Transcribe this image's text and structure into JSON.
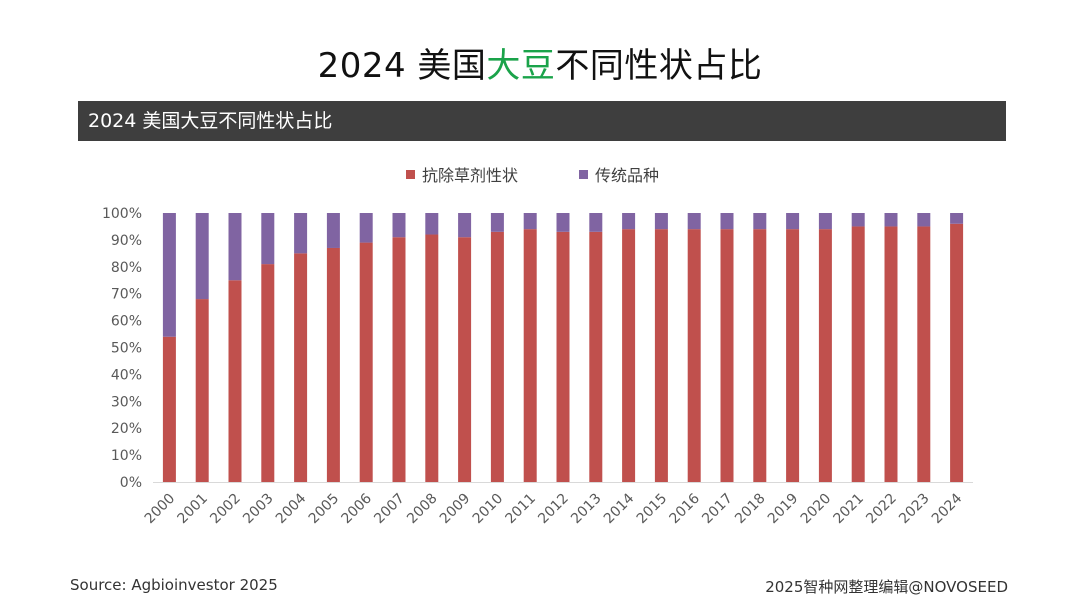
{
  "header": {
    "title_prefix": "2024 美国",
    "title_highlight": "大豆",
    "title_suffix": "不同性状占比",
    "banner": "2024 美国大豆不同性状占比"
  },
  "footer": {
    "source": "Source: Agbioinvestor 2025",
    "credit": "2025智种网整理编辑@NOVOSEED"
  },
  "colors": {
    "herbicide": "#c0504d",
    "conventional": "#8064a2",
    "title_highlight": "#1aa34a",
    "banner_bg": "#3e3e3e"
  },
  "chart_data": {
    "type": "bar",
    "stacked": true,
    "title": "2024 美国大豆不同性状占比",
    "categories": [
      "2000",
      "2001",
      "2002",
      "2003",
      "2004",
      "2005",
      "2006",
      "2007",
      "2008",
      "2009",
      "2010",
      "2011",
      "2012",
      "2013",
      "2014",
      "2015",
      "2016",
      "2017",
      "2018",
      "2019",
      "2020",
      "2021",
      "2022",
      "2023",
      "2024"
    ],
    "series": [
      {
        "name": "抗除草剂性状",
        "color": "#c0504d",
        "values": [
          54,
          68,
          75,
          81,
          85,
          87,
          89,
          91,
          92,
          91,
          93,
          94,
          93,
          93,
          94,
          94,
          94,
          94,
          94,
          94,
          94,
          95,
          95,
          95,
          96
        ]
      },
      {
        "name": "传统品种",
        "color": "#8064a2",
        "values": [
          46,
          32,
          25,
          19,
          15,
          13,
          11,
          9,
          8,
          9,
          7,
          6,
          7,
          7,
          6,
          6,
          6,
          6,
          6,
          6,
          6,
          5,
          5,
          5,
          4
        ]
      }
    ],
    "ylim": [
      0,
      100
    ],
    "yticks": [
      "0%",
      "10%",
      "20%",
      "30%",
      "40%",
      "50%",
      "60%",
      "70%",
      "80%",
      "90%",
      "100%"
    ],
    "legend_position": "top",
    "grid": false
  }
}
